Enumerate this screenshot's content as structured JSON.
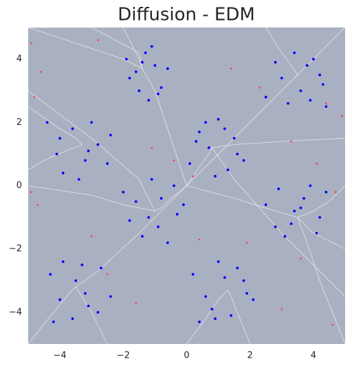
{
  "chart_data": {
    "type": "scatter",
    "title": "Diffusion - EDM",
    "background": "#a9b0c1",
    "xlim": [
      -5,
      5
    ],
    "ylim": [
      -5,
      5
    ],
    "xticks": [
      {
        "value": -4,
        "label": "−4"
      },
      {
        "value": -2,
        "label": "−2"
      },
      0,
      2,
      4
    ],
    "yticks": [
      {
        "value": -4,
        "label": "−4"
      },
      {
        "value": -2,
        "label": "−2"
      },
      0,
      2,
      4
    ],
    "trajectory_color": "#ffffff",
    "trajectories": [
      {
        "x": [
          -5,
          -3.5,
          -2.0,
          -1.4
        ],
        "values": [
          5,
          4.5,
          4.0,
          3.7
        ]
      },
      {
        "x": [
          5,
          4,
          3.6,
          3.5
        ],
        "values": [
          5,
          4,
          3.6,
          3.5
        ]
      },
      {
        "x": [
          -5,
          -4,
          -3.5,
          -3.3
        ],
        "values": [
          2.5,
          1.8,
          1.5,
          1.3
        ]
      },
      {
        "x": [
          5,
          4,
          3.6,
          3.5
        ],
        "values": [
          -2,
          -1.5,
          -1.1,
          -1.0
        ]
      },
      {
        "x": [
          -5,
          -4.2,
          -3.7,
          -3.5
        ],
        "values": [
          -5,
          -4,
          -3.4,
          -3.2
        ]
      },
      {
        "x": [
          2,
          1.6,
          1.4,
          1.3
        ],
        "values": [
          -5,
          -4,
          -3.5,
          -3.3
        ]
      },
      {
        "x": [
          0,
          -0.5,
          -0.8,
          -1.0
        ],
        "values": [
          0,
          -0.4,
          -0.7,
          -0.8
        ]
      },
      {
        "x": [
          0,
          0.4,
          0.7,
          0.8
        ],
        "values": [
          0,
          0.6,
          1.0,
          1.2
        ]
      },
      {
        "x": [
          -5,
          -3,
          -2,
          -1.0
        ],
        "values": [
          0,
          -0.3,
          -0.6,
          -0.8
        ]
      },
      {
        "x": [
          5,
          3,
          1.5,
          0.8
        ],
        "values": [
          1.5,
          1.4,
          1.3,
          1.2
        ]
      },
      {
        "x": [
          -2,
          -1.8,
          -1.5,
          -1.4
        ],
        "values": [
          5,
          4.6,
          4.0,
          3.7
        ]
      },
      {
        "x": [
          2.5,
          3,
          3.3,
          3.5
        ],
        "values": [
          5,
          4.2,
          3.8,
          3.5
        ]
      },
      {
        "x": [
          -5,
          -4.5,
          -3.8,
          -3.3
        ],
        "values": [
          0.5,
          0.8,
          1.1,
          1.3
        ]
      },
      {
        "x": [
          5,
          4.5,
          4,
          3.5
        ],
        "values": [
          0,
          -0.5,
          -0.8,
          -1.0
        ]
      },
      {
        "x": [
          -2.5,
          -3,
          -3.3,
          -3.5
        ],
        "values": [
          -5,
          -4,
          -3.5,
          -3.2
        ]
      },
      {
        "x": [
          0,
          0.6,
          1.0,
          1.3
        ],
        "values": [
          -5,
          -4.2,
          -3.6,
          -3.3
        ]
      },
      {
        "x": [
          0,
          -0.5,
          -1.0,
          -1.4
        ],
        "values": [
          0,
          1.5,
          3.0,
          3.7
        ]
      },
      {
        "x": [
          0,
          1.5,
          2.8,
          3.5
        ],
        "values": [
          0,
          1.5,
          2.8,
          3.5
        ]
      },
      {
        "x": [
          0,
          -1.5,
          -2.8,
          -3.5
        ],
        "values": [
          0,
          -1.5,
          -2.7,
          -3.2
        ]
      },
      {
        "x": [
          0,
          1.5,
          2.8,
          3.5
        ],
        "values": [
          0,
          -0.4,
          -0.8,
          -1.0
        ]
      },
      {
        "x": [
          -5,
          -3,
          -1.5,
          -1.0
        ],
        "values": [
          3,
          1.5,
          0.2,
          -0.8
        ]
      },
      {
        "x": [
          5,
          3,
          1.5,
          0.8
        ],
        "values": [
          -3.5,
          -1.5,
          0.2,
          1.2
        ]
      },
      {
        "x": [
          -5,
          -3,
          -1.5,
          -1.4
        ],
        "values": [
          5,
          5,
          4.2,
          3.7
        ]
      },
      {
        "x": [
          5,
          4.2,
          3.8,
          3.5
        ],
        "values": [
          -5,
          -3,
          -1.8,
          -1.0
        ]
      }
    ],
    "series": [
      {
        "color": "#0000ff",
        "x": [
          -1.9,
          -1.6,
          -1.3,
          -1.0,
          -0.8,
          -1.5,
          -1.2,
          -0.6,
          -1.8,
          -1.1,
          -0.9,
          -1.4,
          2.5,
          3.0,
          3.4,
          3.8,
          4.2,
          4.4,
          3.2,
          3.6,
          4.0,
          2.8,
          3.9,
          4.3,
          -4.4,
          -4.0,
          -3.6,
          -3.2,
          -2.8,
          -2.5,
          -3.9,
          -3.4,
          -3.0,
          -2.4,
          -4.1,
          -3.1,
          0.1,
          0.4,
          0.7,
          1.0,
          1.3,
          1.6,
          0.3,
          0.9,
          1.2,
          1.8,
          0.6,
          1.5,
          -2.0,
          -1.6,
          -1.2,
          -0.8,
          -0.4,
          -0.1,
          -1.8,
          -1.4,
          -0.9,
          -0.6,
          -1.1,
          -0.3,
          2.5,
          2.9,
          3.3,
          3.7,
          4.1,
          4.4,
          2.8,
          3.4,
          3.9,
          4.2,
          3.1,
          3.6,
          -4.3,
          -3.9,
          -3.5,
          -3.1,
          -2.7,
          -2.4,
          -4.0,
          -3.6,
          -3.2,
          -2.8,
          -4.2,
          -3.3,
          0.2,
          0.6,
          1.0,
          1.4,
          1.8,
          2.1,
          0.4,
          0.8,
          1.2,
          1.6,
          0.9,
          1.9
        ],
        "values": [
          4.0,
          3.6,
          4.2,
          3.8,
          3.1,
          3.0,
          2.7,
          3.7,
          3.4,
          4.4,
          2.9,
          3.9,
          2.8,
          3.4,
          4.2,
          3.8,
          3.5,
          2.5,
          2.6,
          3.0,
          4.0,
          3.9,
          2.7,
          3.2,
          2.0,
          1.5,
          1.8,
          0.8,
          1.3,
          0.7,
          0.4,
          0.2,
          2.0,
          1.6,
          1.0,
          1.1,
          0.7,
          1.7,
          1.2,
          2.1,
          0.5,
          1.0,
          1.4,
          0.3,
          1.8,
          0.8,
          2.0,
          1.5,
          -0.2,
          -0.5,
          -1.0,
          -0.4,
          0.0,
          -0.6,
          -1.1,
          -1.6,
          -1.3,
          -1.8,
          0.2,
          -0.9,
          -0.6,
          -0.1,
          -1.2,
          -0.4,
          -1.5,
          -0.2,
          -1.3,
          -0.8,
          0.0,
          -1.0,
          -1.6,
          -0.7,
          -2.8,
          -2.4,
          -3.0,
          -3.8,
          -2.6,
          -3.5,
          -3.6,
          -4.2,
          -3.4,
          -4.0,
          -4.3,
          -2.5,
          -2.8,
          -3.5,
          -2.4,
          -4.1,
          -3.0,
          -3.6,
          -4.3,
          -3.9,
          -2.9,
          -2.6,
          -4.2,
          -3.4
        ]
      },
      {
        "color": "#ff3b3b",
        "x": [
          -4.9,
          -4.6,
          -4.8,
          -2.8,
          -1.1,
          -0.4,
          0.2,
          1.4,
          2.3,
          3.3,
          4.1,
          4.9,
          4.7,
          4.4,
          -4.9,
          -4.7,
          -3.0,
          -2.5,
          -1.6,
          0.4,
          1.9,
          3.6,
          3.0,
          4.6
        ],
        "values": [
          4.5,
          3.6,
          2.8,
          4.6,
          1.2,
          0.8,
          0.3,
          3.7,
          3.1,
          1.4,
          0.7,
          2.2,
          -0.2,
          2.6,
          -0.2,
          -0.6,
          -1.6,
          -2.8,
          -3.7,
          -1.7,
          -1.8,
          -2.3,
          -3.9,
          -4.4
        ]
      }
    ]
  }
}
